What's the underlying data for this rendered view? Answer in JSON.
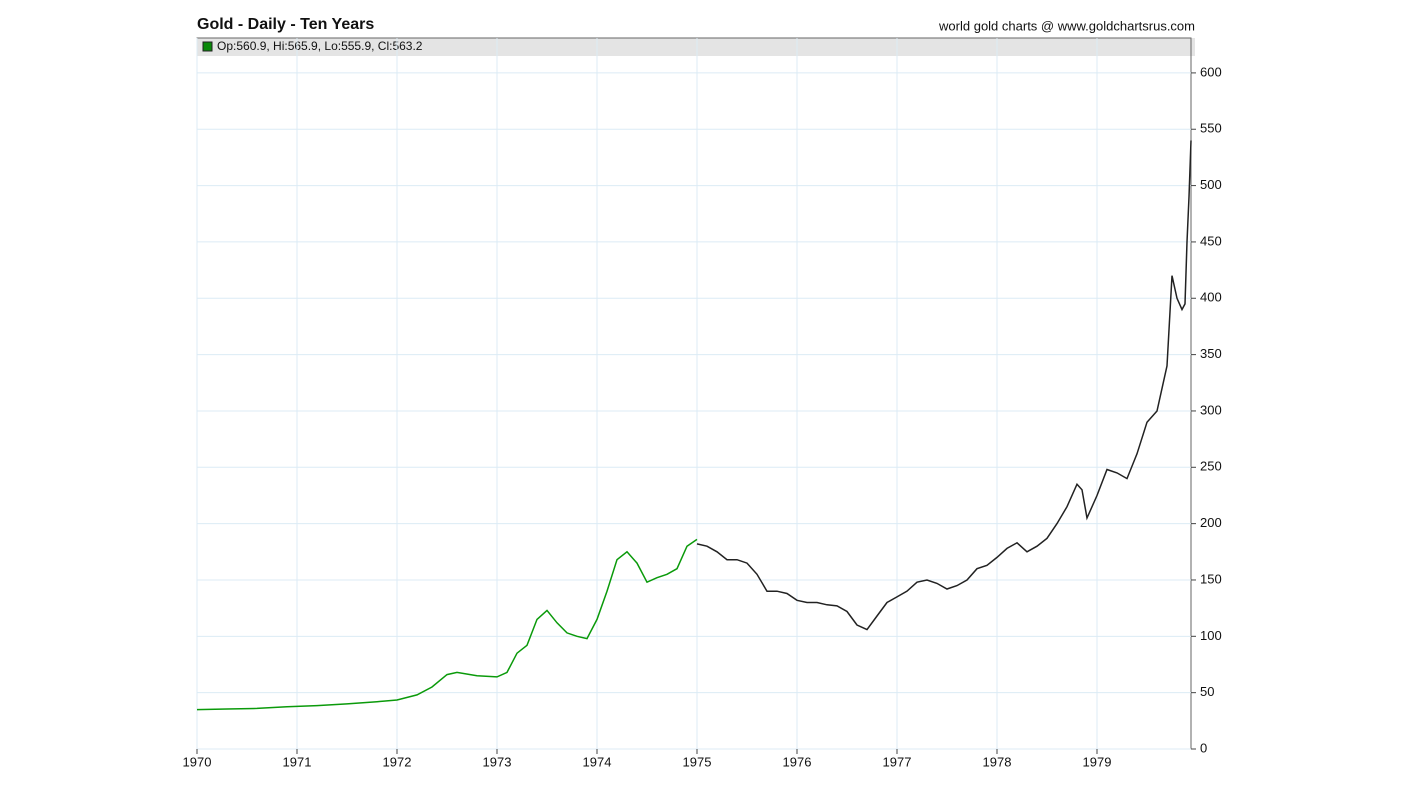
{
  "chart_data": {
    "type": "line",
    "title": "Gold - Daily - Ten Years",
    "source": "world gold charts @ www.goldchartsrus.com",
    "legend_text": "Op:560.9, Hi:565.9, Lo:555.9, Cl:563.2",
    "legend_color": "#0a8a0a",
    "xlim": [
      1970,
      1979.94
    ],
    "xticks": [
      1970,
      1971,
      1972,
      1973,
      1974,
      1975,
      1976,
      1977,
      1978,
      1979
    ],
    "ylim": [
      0,
      615
    ],
    "yticks": [
      0,
      50,
      100,
      150,
      200,
      250,
      300,
      350,
      400,
      450,
      500,
      550,
      600
    ],
    "grid": true,
    "series": [
      {
        "color": "#0a9a0a",
        "x": [
          1970.0,
          1970.3,
          1970.6,
          1970.9,
          1971.2,
          1971.5,
          1971.8,
          1972.0,
          1972.2,
          1972.35,
          1972.5,
          1972.6,
          1972.8,
          1973.0,
          1973.1,
          1973.2,
          1973.3,
          1973.4,
          1973.5,
          1973.6,
          1973.7,
          1973.8,
          1973.9,
          1974.0,
          1974.1,
          1974.2,
          1974.3,
          1974.4,
          1974.5,
          1974.6,
          1974.7,
          1974.8,
          1974.9,
          1975.0
        ],
        "values": [
          35,
          35.5,
          36,
          37.5,
          38.5,
          40,
          42,
          43.5,
          48,
          55,
          66,
          68,
          65,
          64,
          68,
          85,
          92,
          115,
          123,
          112,
          103,
          100,
          98,
          115,
          140,
          168,
          175,
          165,
          148,
          152,
          155,
          160,
          180,
          186
        ]
      },
      {
        "color": "#222222",
        "x": [
          1975.0,
          1975.1,
          1975.2,
          1975.3,
          1975.4,
          1975.5,
          1975.6,
          1975.7,
          1975.8,
          1975.9,
          1976.0,
          1976.1,
          1976.2,
          1976.3,
          1976.4,
          1976.5,
          1976.6,
          1976.7,
          1976.8,
          1976.9,
          1977.0,
          1977.1,
          1977.2,
          1977.3,
          1977.4,
          1977.5,
          1977.6,
          1977.7,
          1977.8,
          1977.9,
          1978.0,
          1978.1,
          1978.2,
          1978.3,
          1978.4,
          1978.5,
          1978.6,
          1978.7,
          1978.8,
          1978.85,
          1978.9,
          1979.0,
          1979.1,
          1979.2,
          1979.3,
          1979.4,
          1979.5,
          1979.6,
          1979.7,
          1979.75,
          1979.8,
          1979.85,
          1979.88,
          1979.9,
          1979.92,
          1979.94
        ],
        "values": [
          182,
          180,
          175,
          168,
          168,
          165,
          155,
          140,
          140,
          138,
          132,
          130,
          130,
          128,
          127,
          122,
          110,
          106,
          118,
          130,
          135,
          140,
          148,
          150,
          147,
          142,
          145,
          150,
          160,
          163,
          170,
          178,
          183,
          175,
          180,
          187,
          200,
          215,
          235,
          230,
          205,
          225,
          248,
          245,
          240,
          262,
          290,
          300,
          340,
          420,
          400,
          390,
          395,
          450,
          490,
          540
        ]
      }
    ]
  }
}
